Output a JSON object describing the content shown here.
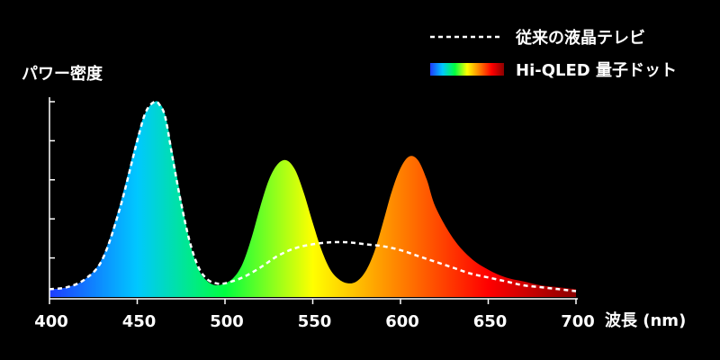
{
  "chart_data": {
    "type": "area",
    "xlabel": "波長 (nm)",
    "ylabel": "パワー密度",
    "xlim": [
      400,
      700
    ],
    "ylim": [
      0,
      1
    ],
    "x_ticks": [
      "400",
      "450",
      "500",
      "550",
      "600",
      "650",
      "700"
    ],
    "y_ticks": [
      0.2,
      0.4,
      0.6,
      0.8,
      1.0
    ],
    "y_tick_labels_shown": false,
    "grid": false,
    "legend_position": "top-right",
    "series": [
      {
        "name": "従来の液晶テレビ",
        "style": "dashed",
        "color": "#ffffff",
        "x": [
          400,
          410,
          420,
          430,
          440,
          450,
          455,
          460,
          463,
          466,
          470,
          475,
          480,
          485,
          490,
          495,
          500,
          510,
          520,
          530,
          540,
          550,
          560,
          570,
          580,
          590,
          600,
          610,
          620,
          630,
          640,
          650,
          660,
          670,
          680,
          690,
          700
        ],
        "y": [
          0.04,
          0.05,
          0.09,
          0.19,
          0.45,
          0.8,
          0.95,
          1.0,
          0.98,
          0.92,
          0.72,
          0.48,
          0.28,
          0.15,
          0.09,
          0.07,
          0.07,
          0.1,
          0.15,
          0.21,
          0.25,
          0.27,
          0.28,
          0.28,
          0.27,
          0.26,
          0.24,
          0.21,
          0.18,
          0.15,
          0.12,
          0.1,
          0.08,
          0.06,
          0.05,
          0.04,
          0.03
        ]
      },
      {
        "name": "Hi-QLED 量子ドット",
        "style": "spectrum-fill",
        "gradient": [
          "#1e3cff",
          "#00c8ff",
          "#00ff40",
          "#ffff00",
          "#ff8000",
          "#ff0000",
          "#8b0000"
        ],
        "x": [
          400,
          410,
          420,
          430,
          440,
          450,
          455,
          460,
          463,
          466,
          470,
          475,
          480,
          485,
          490,
          495,
          500,
          505,
          510,
          515,
          520,
          525,
          530,
          535,
          540,
          545,
          550,
          555,
          560,
          565,
          570,
          575,
          580,
          585,
          590,
          595,
          600,
          605,
          610,
          615,
          620,
          630,
          640,
          650,
          660,
          670,
          680,
          690,
          700
        ],
        "y": [
          0.04,
          0.05,
          0.09,
          0.2,
          0.47,
          0.82,
          0.95,
          1.0,
          0.99,
          0.93,
          0.75,
          0.5,
          0.28,
          0.14,
          0.08,
          0.06,
          0.07,
          0.1,
          0.17,
          0.3,
          0.46,
          0.6,
          0.68,
          0.7,
          0.65,
          0.53,
          0.38,
          0.24,
          0.14,
          0.09,
          0.07,
          0.08,
          0.13,
          0.23,
          0.38,
          0.54,
          0.66,
          0.72,
          0.7,
          0.6,
          0.46,
          0.3,
          0.2,
          0.14,
          0.1,
          0.08,
          0.06,
          0.05,
          0.04
        ]
      }
    ]
  }
}
